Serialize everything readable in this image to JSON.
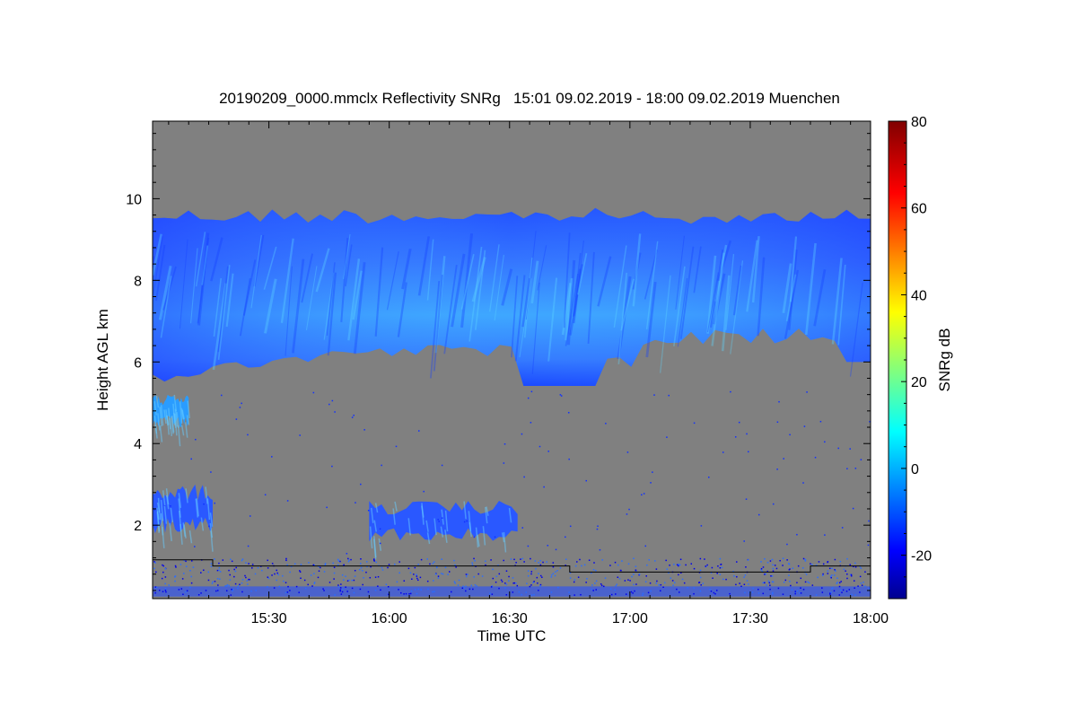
{
  "chart_data": {
    "type": "heatmap",
    "title": "20190209_0000.mmclx Reflectivity SNRg   15:01 09.02.2019 - 18:00 09.02.2019 Muenchen",
    "xlabel": "Time UTC",
    "ylabel": "Height AGL km",
    "colorbar_label": "SNRg dB",
    "x_ticks": [
      "15:30",
      "16:00",
      "16:30",
      "17:00",
      "17:30",
      "18:00"
    ],
    "xlim": [
      "15:01",
      "18:00"
    ],
    "y_ticks": [
      2,
      4,
      6,
      8,
      10
    ],
    "ylim": [
      0.2,
      11.9
    ],
    "colorbar_ticks": [
      -20,
      0,
      20,
      40,
      60,
      80
    ],
    "colorbar_range": [
      -30,
      80
    ],
    "background_color": "#808080",
    "colormap": [
      "#00008f",
      "#0000ff",
      "#00ffff",
      "#ffff00",
      "#ff0000",
      "#800000"
    ],
    "features": [
      {
        "name": "upper ice cloud",
        "time_range": [
          "15:01",
          "18:00"
        ],
        "height_range_km": [
          5.5,
          10.1
        ],
        "snr_range_db": [
          -20,
          10
        ]
      },
      {
        "name": "mid-level layer",
        "time_range": [
          "15:01",
          "15:10"
        ],
        "height_range_km": [
          4.4,
          5.2
        ],
        "snr_range_db": [
          -10,
          5
        ]
      },
      {
        "name": "low cloud",
        "time_range": [
          "15:01",
          "15:16"
        ],
        "height_range_km": [
          1.8,
          3.0
        ],
        "snr_range_db": [
          -20,
          5
        ]
      },
      {
        "name": "low cloud patch",
        "time_range": [
          "15:55",
          "16:32"
        ],
        "height_range_km": [
          1.6,
          2.6
        ],
        "snr_range_db": [
          -20,
          0
        ]
      },
      {
        "name": "surface clutter",
        "time_range": [
          "15:01",
          "18:00"
        ],
        "height_range_km": [
          0.2,
          1.2
        ],
        "snr_range_db": [
          -25,
          -5
        ]
      }
    ],
    "line_series": {
      "name": "",
      "x": [
        "15:01",
        "15:16",
        "15:16",
        "16:45",
        "16:45",
        "17:45",
        "17:45",
        "18:00"
      ],
      "y": [
        1.15,
        1.15,
        1.0,
        1.0,
        0.85,
        0.85,
        1.0,
        1.0
      ]
    }
  }
}
